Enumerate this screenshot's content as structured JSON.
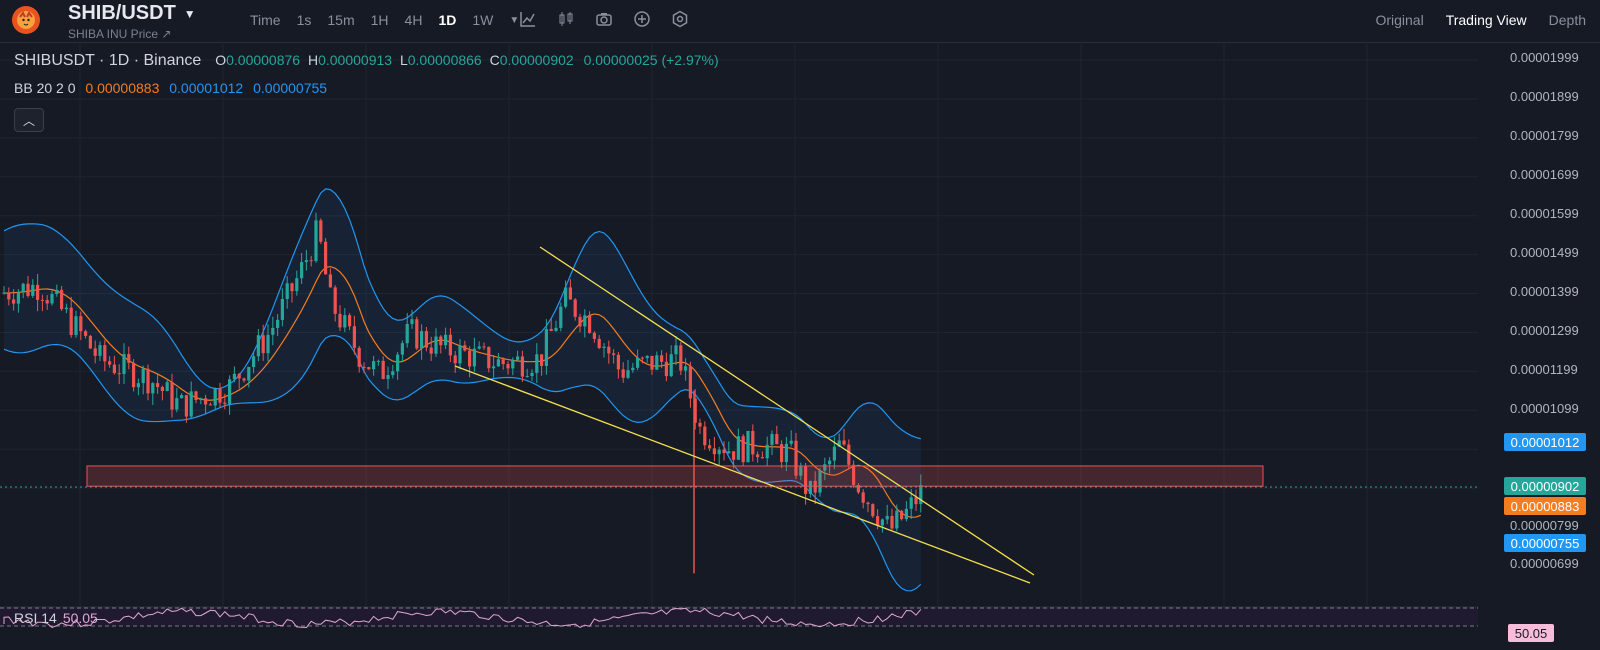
{
  "header": {
    "pair": "SHIB/USDT",
    "subtitle": "SHIBA INU Price ↗",
    "timeframes": [
      "Time",
      "1s",
      "15m",
      "1H",
      "4H",
      "1D",
      "1W"
    ],
    "active_timeframe": "1D",
    "views": [
      "Original",
      "Trading View",
      "Depth"
    ],
    "active_view": "Trading View"
  },
  "legend": {
    "symbol": "SHIBUSDT · 1D · Binance",
    "o_label": "O",
    "o": "0.00000876",
    "h_label": "H",
    "h": "0.00000913",
    "l_label": "L",
    "l": "0.00000866",
    "c_label": "C",
    "c": "0.00000902",
    "change": "0.00000025 (+2.97%)"
  },
  "bb": {
    "label": "BB 20 2 0",
    "basis": "0.00000883",
    "upper": "0.00001012",
    "lower": "0.00000755"
  },
  "price_axis": {
    "ticks": [
      "0.00001999",
      "0.00001899",
      "0.00001799",
      "0.00001699",
      "0.00001599",
      "0.00001499",
      "0.00001399",
      "0.00001299",
      "0.00001199",
      "0.00001099",
      "0.00000799",
      "0.00000699"
    ],
    "tag_upper": "0.00001012",
    "tag_last": "0.00000902",
    "tag_basis": "0.00000883",
    "tag_lower": "0.00000755"
  },
  "rsi": {
    "label": "RSI 14",
    "value": "50.05"
  },
  "colors": {
    "up": "#26a69a",
    "down": "#ef5350",
    "basis": "#f57c1f",
    "band": "#2196f3",
    "trend": "#f4e04d",
    "zone": "#ef5350"
  },
  "chart_data": {
    "type": "candlestick",
    "title": "SHIBUSDT · 1D · Binance",
    "ylim": [
      6.8e-06,
      2.02e-05
    ],
    "last_close": 9.02e-06,
    "bb": {
      "basis": 8.83e-06,
      "upper": 1.012e-05,
      "lower": 7.55e-06
    },
    "zone": [
      9.04e-06,
      9.56e-06
    ]
  }
}
